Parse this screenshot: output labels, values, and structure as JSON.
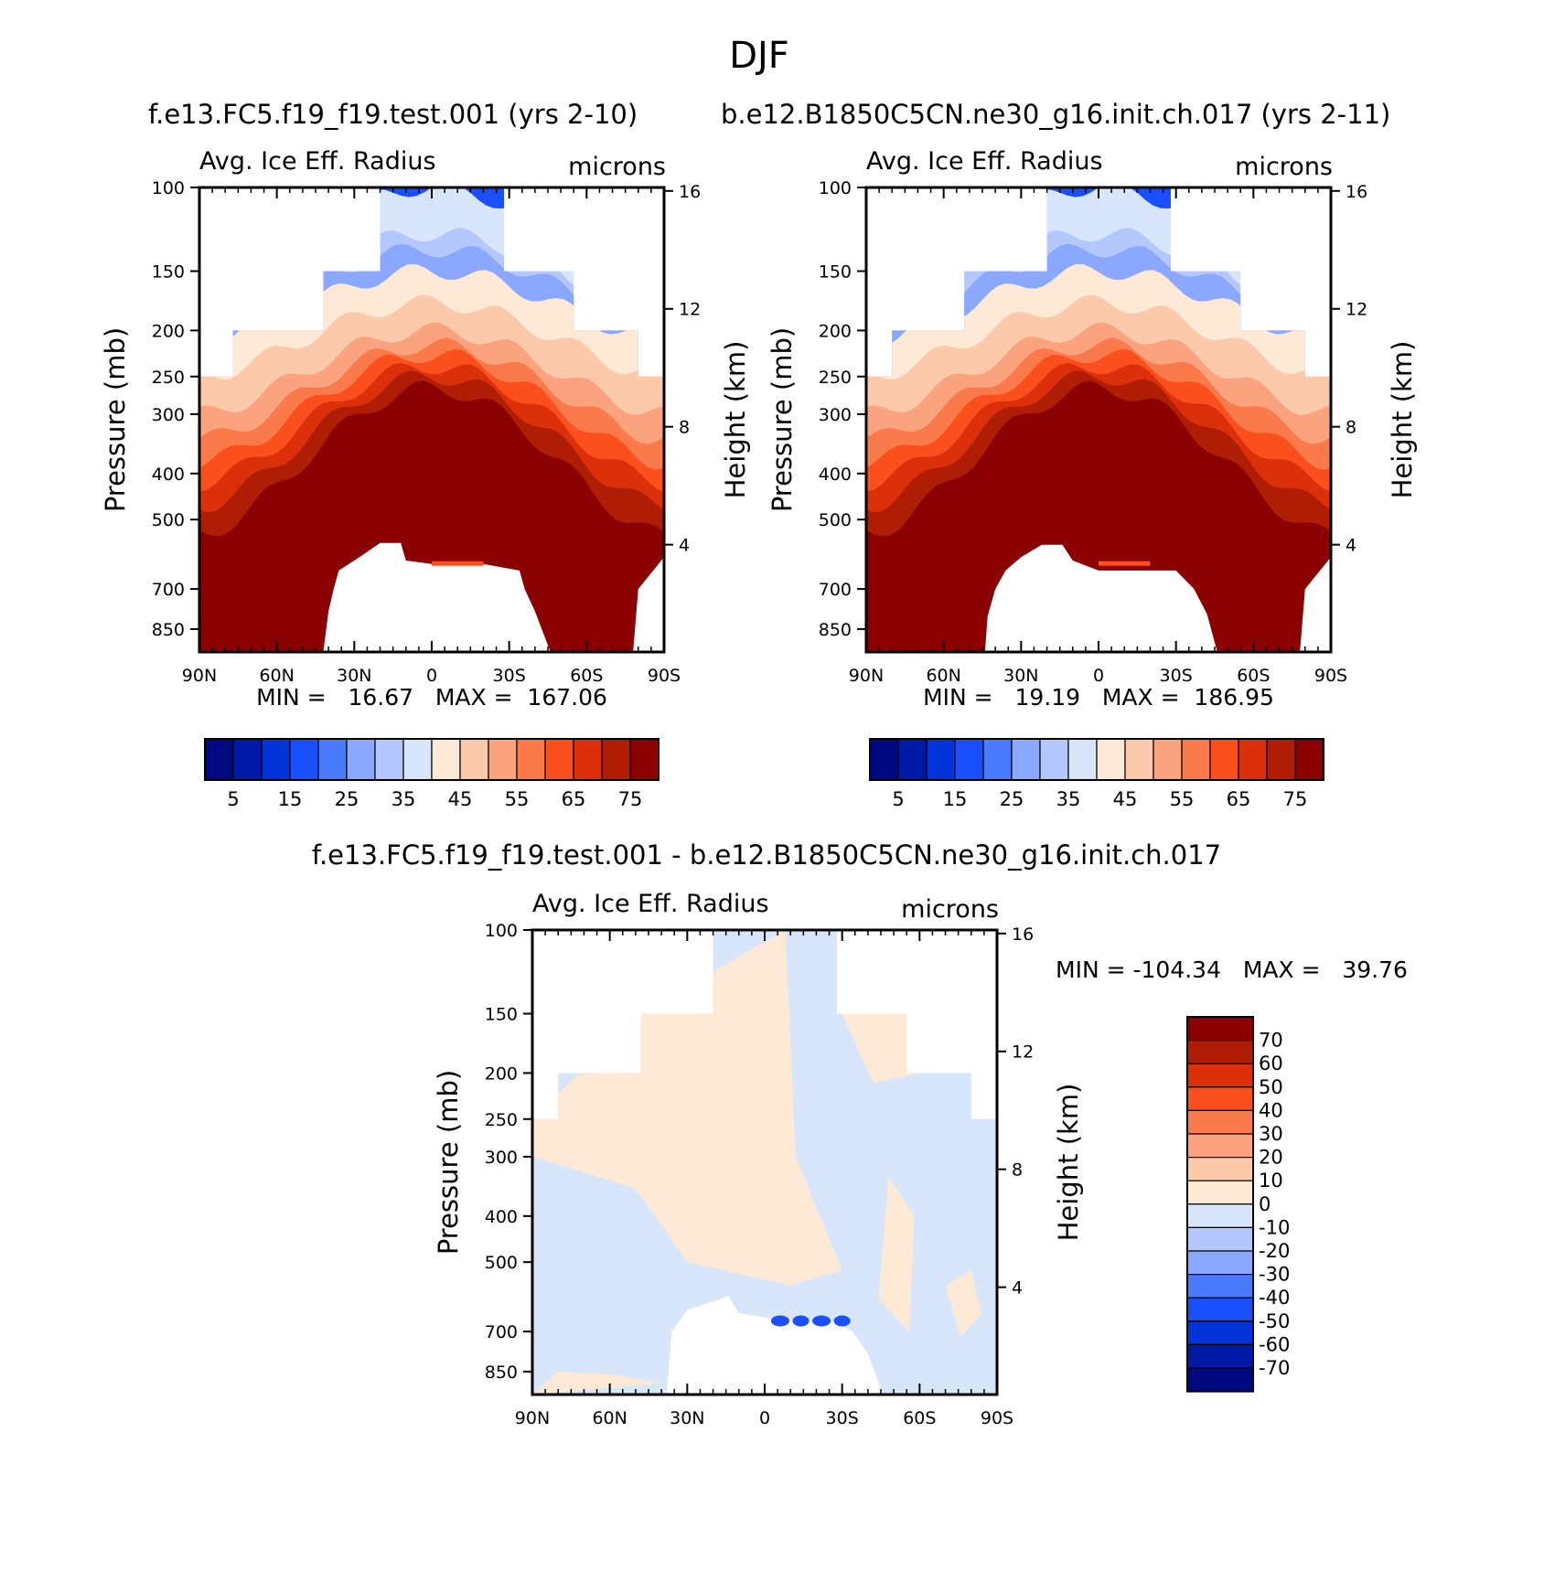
{
  "figure": {
    "title": "DJF"
  },
  "panels": [
    {
      "case_title": "f.e13.FC5.f19_f19.test.001 (yrs 2-10)",
      "var_label": "Avg. Ice Eff. Radius",
      "units": "microns",
      "min_max": "MIN =   16.67   MAX =  167.06",
      "colorbar_labels": [
        "5",
        "15",
        "25",
        "35",
        "45",
        "55",
        "65",
        "75"
      ]
    },
    {
      "case_title": "b.e12.B1850C5CN.ne30_g16.init.ch.017 (yrs 2-11)",
      "var_label": "Avg. Ice Eff. Radius",
      "units": "microns",
      "min_max": "MIN =   19.19   MAX =  186.95",
      "colorbar_labels": [
        "5",
        "15",
        "25",
        "35",
        "45",
        "55",
        "65",
        "75"
      ]
    },
    {
      "case_title": "f.e13.FC5.f19_f19.test.001 - b.e12.B1850C5CN.ne30_g16.init.ch.017",
      "var_label": "Avg. Ice Eff. Radius",
      "units": "microns",
      "min_max": "MIN = -104.34   MAX =   39.76",
      "colorbar_labels": [
        "70",
        "60",
        "50",
        "40",
        "30",
        "20",
        "10",
        "0",
        "-10",
        "-20",
        "-30",
        "-40",
        "-50",
        "-60",
        "-70"
      ]
    }
  ],
  "axes": {
    "ylabel_left": "Pressure (mb)",
    "ylabel_right": "Height (km)",
    "x_ticks": [
      "90N",
      "60N",
      "30N",
      "0",
      "30S",
      "60S",
      "90S"
    ],
    "p_ticks": [
      "100",
      "150",
      "200",
      "250",
      "300",
      "400",
      "500",
      "700",
      "850"
    ],
    "z_ticks": [
      "16",
      "12",
      "8",
      "4"
    ]
  },
  "chart_data": [
    {
      "type": "heatmap",
      "title": "f.e13.FC5.f19_f19.test.001 (yrs 2-10)",
      "xlabel": "",
      "ylabel": "Pressure (mb)",
      "y2label": "Height (km)",
      "x_range": [
        90,
        -90
      ],
      "y_range_mb": [
        100,
        950
      ],
      "y_scale": "log",
      "levels": [
        5,
        10,
        15,
        20,
        25,
        30,
        35,
        40,
        45,
        50,
        55,
        60,
        65,
        70,
        75
      ],
      "colors": [
        "#000a80",
        "#0019a6",
        "#0033d9",
        "#1a4fff",
        "#4a7bff",
        "#8aa8ff",
        "#b4c8ff",
        "#d8e6fb",
        "#fde9d6",
        "#fdc9ab",
        "#fba37f",
        "#fb7a4b",
        "#fb4f1e",
        "#dc300a",
        "#b01d05",
        "#8b0000"
      ],
      "min": 16.67,
      "max": 167.06
    },
    {
      "type": "heatmap",
      "title": "b.e12.B1850C5CN.ne30_g16.init.ch.017 (yrs 2-11)",
      "xlabel": "",
      "ylabel": "Pressure (mb)",
      "y2label": "Height (km)",
      "x_range": [
        90,
        -90
      ],
      "y_range_mb": [
        100,
        950
      ],
      "y_scale": "log",
      "levels": [
        5,
        10,
        15,
        20,
        25,
        30,
        35,
        40,
        45,
        50,
        55,
        60,
        65,
        70,
        75
      ],
      "colors": [
        "#000a80",
        "#0019a6",
        "#0033d9",
        "#1a4fff",
        "#4a7bff",
        "#8aa8ff",
        "#b4c8ff",
        "#d8e6fb",
        "#fde9d6",
        "#fdc9ab",
        "#fba37f",
        "#fb7a4b",
        "#fb4f1e",
        "#dc300a",
        "#b01d05",
        "#8b0000"
      ],
      "min": 19.19,
      "max": 186.95
    },
    {
      "type": "heatmap",
      "title": "f.e13.FC5.f19_f19.test.001 - b.e12.B1850C5CN.ne30_g16.init.ch.017",
      "xlabel": "",
      "ylabel": "Pressure (mb)",
      "y2label": "Height (km)",
      "x_range": [
        90,
        -90
      ],
      "y_range_mb": [
        100,
        950
      ],
      "y_scale": "log",
      "levels": [
        -70,
        -60,
        -50,
        -40,
        -30,
        -20,
        -10,
        0,
        10,
        20,
        30,
        40,
        50,
        60,
        70
      ],
      "colors": [
        "#000a80",
        "#0019a6",
        "#0033d9",
        "#1a4fff",
        "#4a7bff",
        "#8aa8ff",
        "#b4c8ff",
        "#d8e6fb",
        "#fde9d6",
        "#fdc9ab",
        "#fba37f",
        "#fb7a4b",
        "#fb4f1e",
        "#dc300a",
        "#b01d05",
        "#8b0000"
      ],
      "min": -104.34,
      "max": 39.76
    }
  ]
}
